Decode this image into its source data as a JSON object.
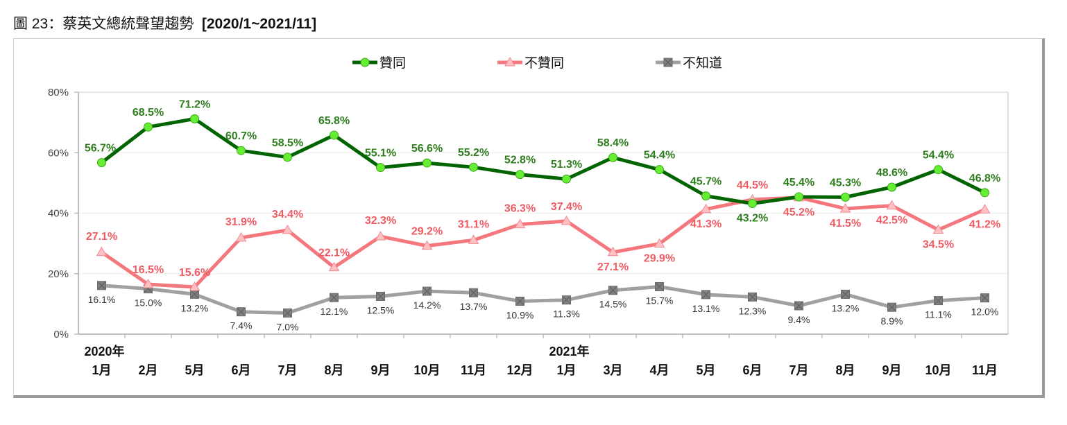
{
  "header": {
    "figure_no": "圖 23：",
    "title_main": "蔡英文總統聲望趨勢",
    "title_range": "[2020/1~2021/11]"
  },
  "chart_data": {
    "type": "line",
    "title": "圖 23：蔡英文總統聲望趨勢  [2020/1~2021/11]",
    "categories": [
      "1月",
      "2月",
      "5月",
      "6月",
      "7月",
      "8月",
      "9月",
      "10月",
      "11月",
      "12月",
      "1月",
      "3月",
      "4月",
      "5月",
      "6月",
      "7月",
      "8月",
      "9月",
      "10月",
      "11月"
    ],
    "year_labels": [
      {
        "index": 0,
        "label": "2020年"
      },
      {
        "index": 10,
        "label": "2021年"
      }
    ],
    "yticks": [
      "0%",
      "20%",
      "40%",
      "60%",
      "80%"
    ],
    "ylim": [
      0,
      80
    ],
    "grid": true,
    "legend_position": "top",
    "series": [
      {
        "name": "贊同",
        "color": "#006400",
        "marker": "circle",
        "marker_color": "#66ee33",
        "values": [
          56.7,
          68.5,
          71.2,
          60.7,
          58.5,
          65.8,
          55.1,
          56.6,
          55.2,
          52.8,
          51.3,
          58.4,
          54.4,
          45.7,
          43.2,
          45.4,
          45.3,
          48.6,
          54.4,
          46.8
        ],
        "labels": [
          "56.7%",
          "68.5%",
          "71.2%",
          "60.7%",
          "58.5%",
          "65.8%",
          "55.1%",
          "56.6%",
          "55.2%",
          "52.8%",
          "51.3%",
          "58.4%",
          "54.4%",
          "45.7%",
          "43.2%",
          "45.4%",
          "45.3%",
          "48.6%",
          "54.4%",
          "46.8%"
        ]
      },
      {
        "name": "不贊同",
        "color": "#f4777d",
        "marker": "triangle",
        "marker_color": "#ffc0c4",
        "values": [
          27.1,
          16.5,
          15.6,
          31.9,
          34.4,
          22.1,
          32.3,
          29.2,
          31.1,
          36.3,
          37.4,
          27.1,
          29.9,
          41.3,
          44.5,
          45.2,
          41.5,
          42.5,
          34.5,
          41.2
        ],
        "labels": [
          "27.1%",
          "16.5%",
          "15.6%",
          "31.9%",
          "34.4%",
          "22.1%",
          "32.3%",
          "29.2%",
          "31.1%",
          "36.3%",
          "37.4%",
          "27.1%",
          "29.9%",
          "41.3%",
          "44.5%",
          "45.2%",
          "41.5%",
          "42.5%",
          "34.5%",
          "41.2%"
        ]
      },
      {
        "name": "不知道",
        "color": "#a0a0a0",
        "marker": "square-x",
        "marker_color": "#808080",
        "values": [
          16.1,
          15.0,
          13.2,
          7.4,
          7.0,
          12.1,
          12.5,
          14.2,
          13.7,
          10.9,
          11.3,
          14.5,
          15.7,
          13.1,
          12.3,
          9.4,
          13.2,
          8.9,
          11.1,
          12.0
        ],
        "labels": [
          "16.1%",
          "15.0%",
          "13.2%",
          "7.4%",
          "7.0%",
          "12.1%",
          "12.5%",
          "14.2%",
          "13.7%",
          "10.9%",
          "11.3%",
          "14.5%",
          "15.7%",
          "13.1%",
          "12.3%",
          "9.4%",
          "13.2%",
          "8.9%",
          "11.1%",
          "12.0%"
        ]
      }
    ]
  }
}
